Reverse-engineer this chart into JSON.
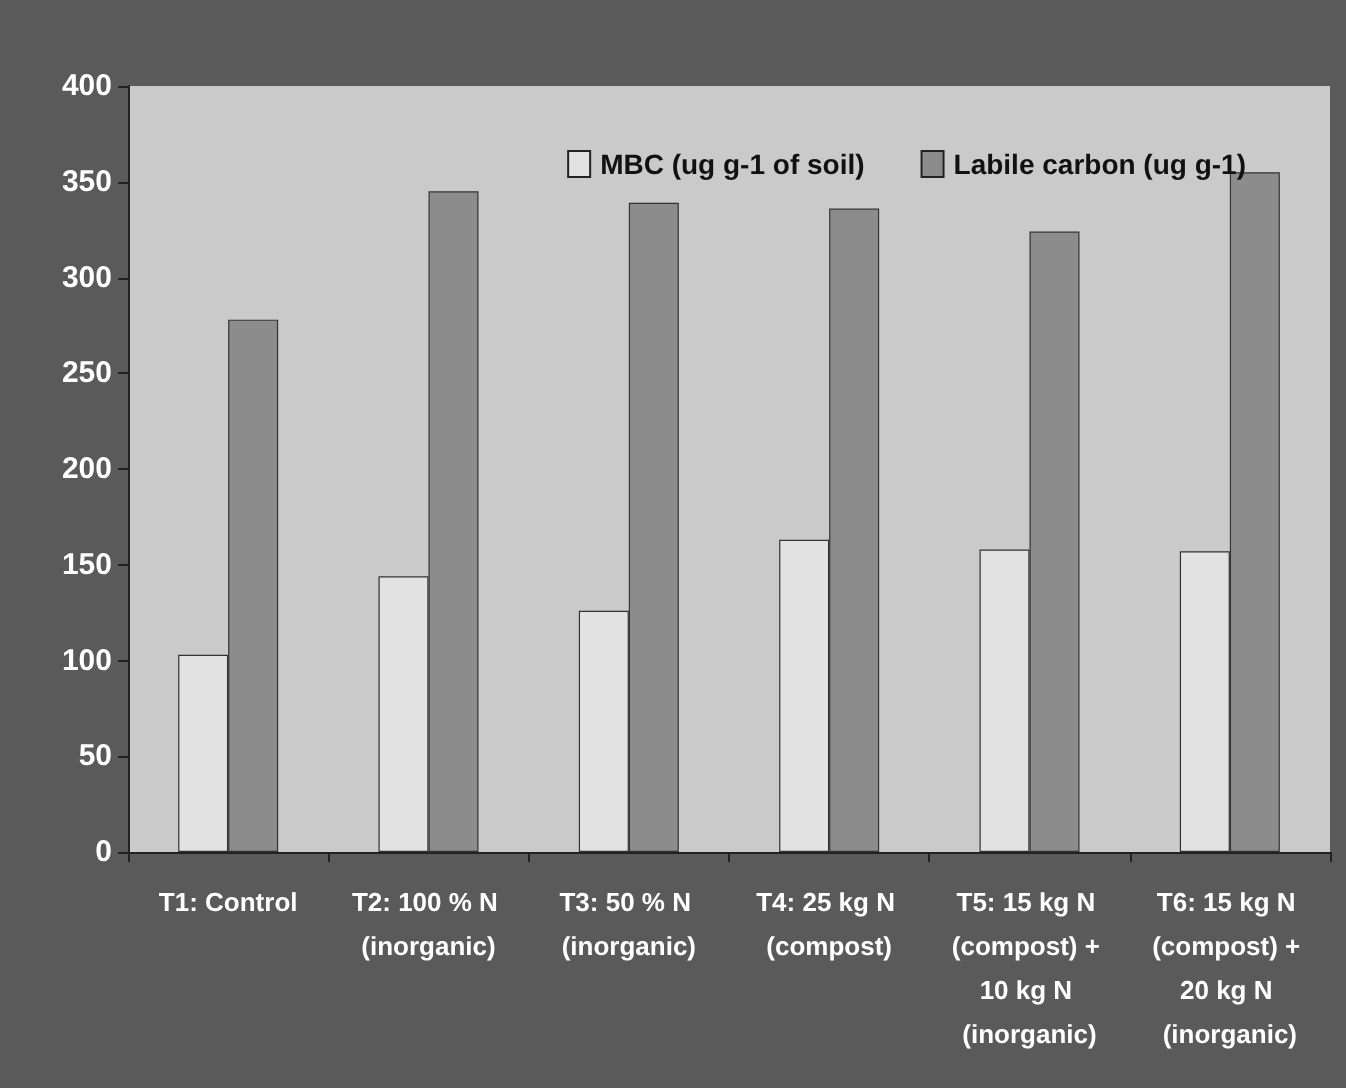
{
  "chart_data": {
    "type": "bar",
    "categories": [
      "T1: Control",
      "T2: 100 % N (inorganic)",
      "T3: 50 % N (inorganic)",
      "T4: 25 kg N (compost)",
      "T5: 15 kg N (compost) + 10 kg N (inorganic)",
      "T6: 15 kg N (compost) + 20 kg N (inorganic)"
    ],
    "series": [
      {
        "name": "MBC (ug g-1 of soil)",
        "color": "#e2e2e2",
        "values": [
          103,
          144,
          126,
          163,
          158,
          157
        ]
      },
      {
        "name": "Labile carbon (ug g-1)",
        "color": "#8c8c8c",
        "values": [
          278,
          345,
          339,
          336,
          324,
          355
        ]
      }
    ],
    "ylim": [
      0,
      400
    ],
    "yticks": [
      0,
      50,
      100,
      150,
      200,
      250,
      300,
      350,
      400
    ],
    "grid": false,
    "legend": "top right"
  }
}
